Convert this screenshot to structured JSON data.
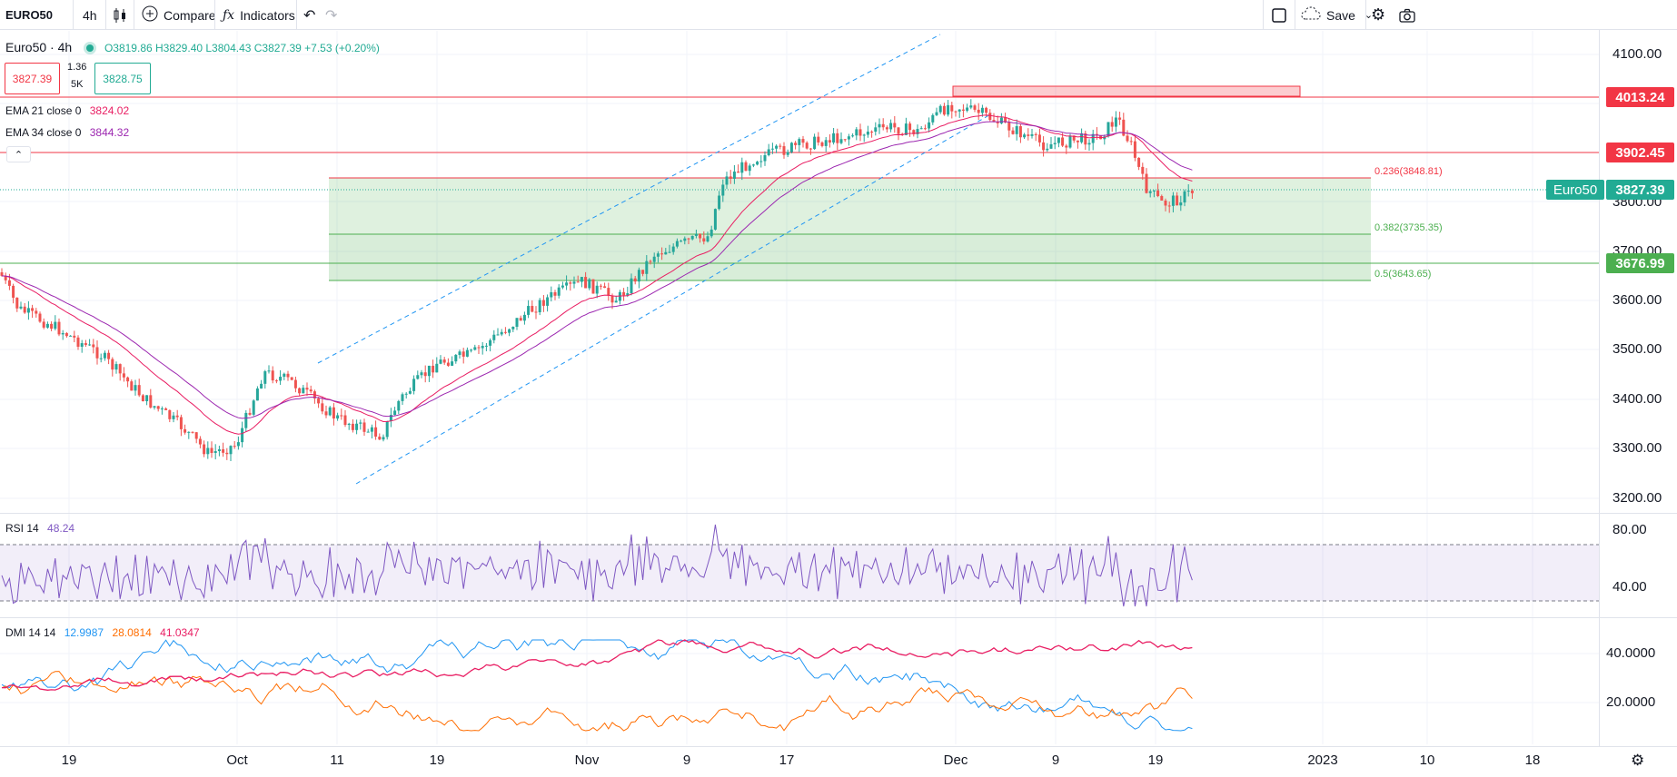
{
  "toolbar": {
    "symbol": "EURO50",
    "interval": "4h",
    "compare_label": "Compare",
    "indicators_label": "Indicators",
    "save_label": "Save"
  },
  "legend": {
    "title": "Euro50 · 4h",
    "ohlc": "O3819.86 H3829.40 L3804.43 C3827.39 +7.53 (+0.20%)",
    "sell_price": "3827.39",
    "spread": "1.36",
    "volume": "5K",
    "buy_price": "3828.75",
    "ema21_label": "EMA 21 close 0",
    "ema21_value": "3824.02",
    "ema34_label": "EMA 34 close 0",
    "ema34_value": "3844.32"
  },
  "price_axis": {
    "labels": [
      "4100.00",
      "3800.00",
      "3700.00",
      "3600.00",
      "3500.00",
      "3400.00",
      "3300.00",
      "3200.00"
    ],
    "tags": [
      {
        "label": "4013.24",
        "color": "#f23645"
      },
      {
        "label": "3902.45",
        "color": "#f23645"
      },
      {
        "label": "3827.39",
        "color": "#22ab94"
      },
      {
        "label": "3676.99",
        "color": "#4caf50"
      }
    ],
    "symbol_tag": "Euro50"
  },
  "fib": {
    "l236": "0.236(3848.81)",
    "l382": "0.382(3735.35)",
    "l50": "0.5(3643.65)"
  },
  "rsi": {
    "label": "RSI 14",
    "value": "48.24",
    "axis": [
      "80.00",
      "40.00"
    ]
  },
  "dmi": {
    "label": "DMI 14 14",
    "plus_di": "12.9987",
    "minus_di": "28.0814",
    "adx": "41.0347",
    "axis": [
      "40.0000",
      "20.0000"
    ]
  },
  "time_axis": [
    "19",
    "Oct",
    "11",
    "19",
    "Nov",
    "9",
    "17",
    "Dec",
    "9",
    "19",
    "2023",
    "10",
    "18"
  ],
  "colors": {
    "up": "#26a69a",
    "down": "#ef5350",
    "ema21": "#e91e63",
    "ema34": "#9c27b0",
    "rsi": "#7e57c2",
    "plus_di": "#2196f3",
    "minus_di": "#ff6d00",
    "adx": "#e91e63"
  },
  "icons": [
    "candles-icon",
    "compare-plus-icon",
    "indicators-fx-icon",
    "undo-icon",
    "redo-icon",
    "layout-square-icon",
    "cloud-save-icon",
    "settings-gear-icon",
    "camera-icon"
  ]
}
